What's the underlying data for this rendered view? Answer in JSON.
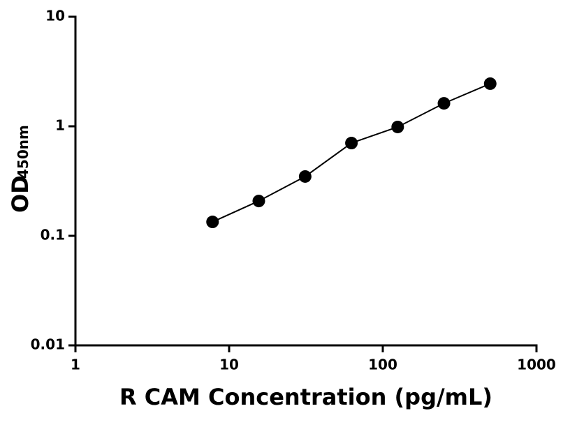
{
  "chart_data": {
    "type": "scatter",
    "x_label": "R CAM Concentration (pg/mL)",
    "y_label": "OD",
    "y_label_subscript": "450nm",
    "x": [
      7.8,
      15.6,
      31.25,
      62.5,
      125,
      250,
      500
    ],
    "values": [
      0.134,
      0.208,
      0.348,
      0.703,
      0.986,
      1.62,
      2.45
    ],
    "color": "#000000",
    "x_log": true,
    "y_log": true,
    "xlim": [
      1,
      1000
    ],
    "ylim": [
      0.01,
      10
    ],
    "xticks": [
      1,
      10,
      100,
      1000
    ],
    "yticks": [
      0.01,
      0.1,
      1,
      10
    ],
    "fit_line": true
  }
}
